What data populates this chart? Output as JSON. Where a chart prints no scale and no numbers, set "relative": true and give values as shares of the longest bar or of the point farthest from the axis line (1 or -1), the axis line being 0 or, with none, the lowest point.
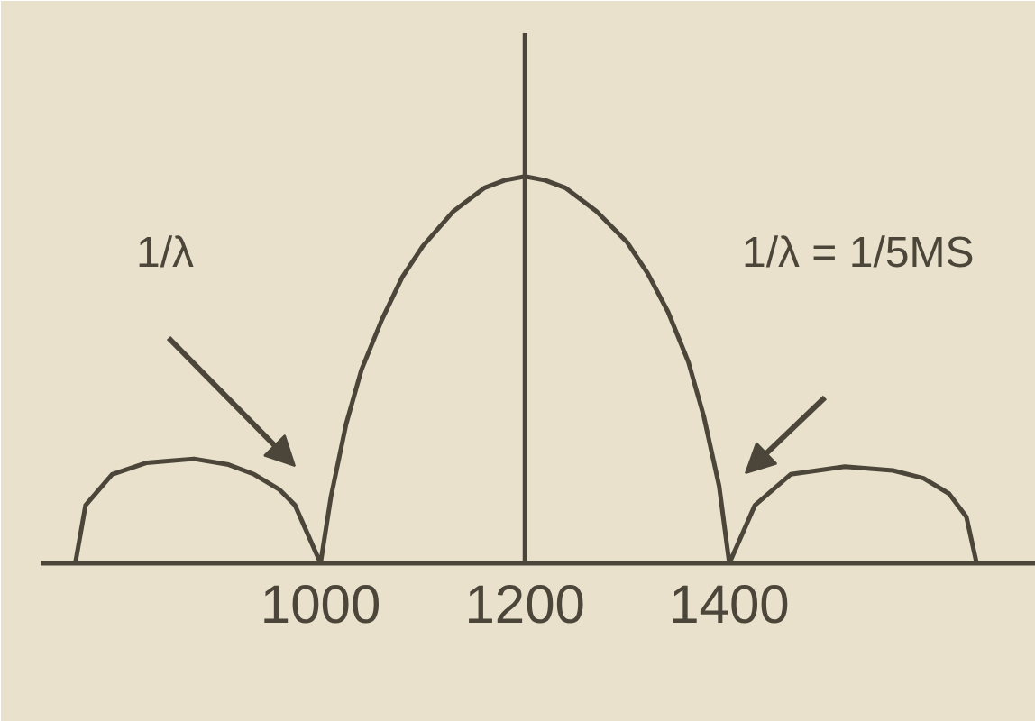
{
  "chart_data": {
    "type": "line",
    "relative": true,
    "x": [
      760,
      770,
      796,
      830,
      876,
      910,
      935,
      960,
      975,
      1000,
      1010,
      1025,
      1040,
      1060,
      1080,
      1100,
      1130,
      1160,
      1180,
      1200,
      1220,
      1240,
      1270,
      1300,
      1320,
      1340,
      1360,
      1375,
      1390,
      1400,
      1425,
      1460,
      1513,
      1560,
      1590,
      1615,
      1632,
      1642
    ],
    "series": [
      {
        "color": "#4b4639",
        "values": [
          0,
          0.15,
          0.23,
          0.26,
          0.27,
          0.255,
          0.23,
          0.19,
          0.15,
          0,
          0.17,
          0.36,
          0.5,
          0.63,
          0.74,
          0.82,
          0.91,
          0.97,
          0.99,
          1,
          0.99,
          0.97,
          0.91,
          0.83,
          0.75,
          0.65,
          0.52,
          0.38,
          0.2,
          0,
          0.15,
          0.23,
          0.25,
          0.24,
          0.22,
          0.18,
          0.12,
          0
        ]
      }
    ],
    "line_style": "solid",
    "xlim": [
      726,
      1700
    ],
    "xticks": [
      1000,
      1200,
      1400
    ],
    "ref_lines": [
      {
        "axis": "x",
        "value": 1200,
        "color": "#4b4639"
      }
    ],
    "annotations": [
      "1/λ",
      "1/λ = 1/5MS"
    ]
  }
}
